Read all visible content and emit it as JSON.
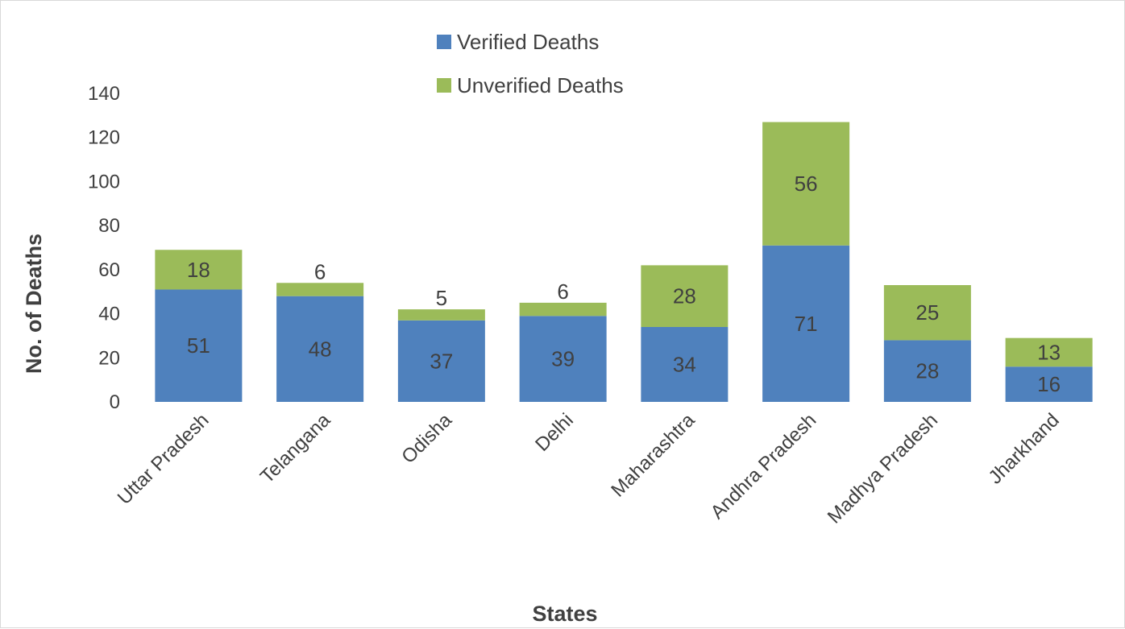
{
  "chart_data": {
    "type": "bar",
    "stacked": true,
    "title": "",
    "xlabel": "States",
    "ylabel": "No. of Deaths",
    "ylim": [
      0,
      140
    ],
    "yticks": [
      0,
      20,
      40,
      60,
      80,
      100,
      120,
      140
    ],
    "grid": false,
    "legend_position": "top-center",
    "categories": [
      "Uttar Pradesh",
      "Telangana",
      "Odisha",
      "Delhi",
      "Maharashtra",
      "Andhra Pradesh",
      "Madhya Pradesh",
      "Jharkhand"
    ],
    "series": [
      {
        "name": "Verified Deaths",
        "color": "#4f81bd",
        "values": [
          51,
          48,
          37,
          39,
          34,
          71,
          28,
          16
        ]
      },
      {
        "name": "Unverified Deaths",
        "color": "#9bbb59",
        "values": [
          18,
          6,
          5,
          6,
          28,
          56,
          25,
          13
        ]
      }
    ]
  }
}
